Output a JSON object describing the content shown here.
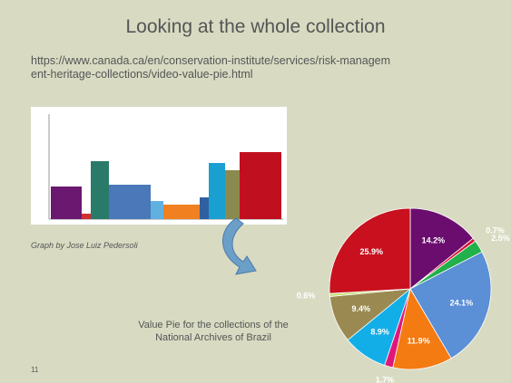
{
  "slide": {
    "title": "Looking at the whole collection",
    "url": "https://www.canada.ca/en/conservation-institute/services/risk-management-heritage-collections/video-value-pie.html",
    "image_caption": "Graph by Jose Luiz Pedersoli",
    "pie_caption": "Value Pie for the collections of the National Archives of Brazil",
    "page_number": "11"
  },
  "chart_data": {
    "type": "pie",
    "values": [
      14.2,
      0.7,
      2.5,
      24.1,
      11.9,
      1.7,
      8.9,
      9.4,
      0.6,
      25.9
    ],
    "value_labels": [
      "14.2%",
      "0.7%",
      "2.5%",
      "24.1%",
      "11.9%",
      "1.7%",
      "8.9%",
      "9.4%",
      "0.6%",
      "25.9%"
    ],
    "colors": [
      "#6a0d6e",
      "#d9143a",
      "#22b04a",
      "#5b8fd6",
      "#f47a12",
      "#e0177a",
      "#12aee8",
      "#9a8a52",
      "#c8e07a",
      "#c8101e"
    ]
  }
}
